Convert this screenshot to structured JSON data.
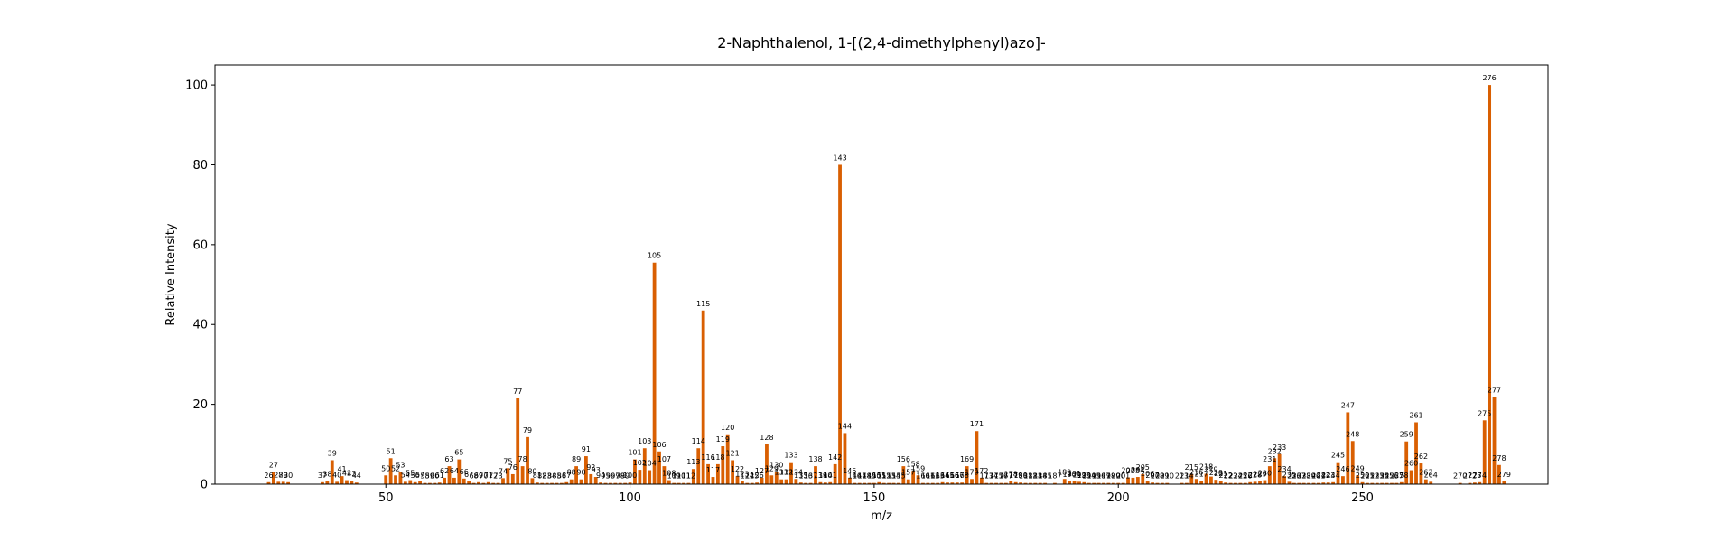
{
  "chart_data": {
    "type": "bar",
    "title": "2-Naphthalenol, 1-[(2,4-dimethylphenyl)azo]-",
    "xlabel": "m/z",
    "ylabel": "Relative Intensity",
    "xlim": [
      15,
      288
    ],
    "ylim": [
      0,
      105
    ],
    "xticks": [
      50,
      100,
      150,
      200,
      250
    ],
    "yticks": [
      0,
      20,
      40,
      60,
      80,
      100
    ],
    "grid": false,
    "bar_color": "#d95f02",
    "peaks": [
      {
        "x": 26,
        "y": 0.5
      },
      {
        "x": 27,
        "y": 3.0
      },
      {
        "x": 28,
        "y": 0.6
      },
      {
        "x": 29,
        "y": 0.6
      },
      {
        "x": 30,
        "y": 0.5
      },
      {
        "x": 37,
        "y": 0.5
      },
      {
        "x": 38,
        "y": 0.8
      },
      {
        "x": 39,
        "y": 6.0
      },
      {
        "x": 40,
        "y": 0.6
      },
      {
        "x": 41,
        "y": 2.0
      },
      {
        "x": 42,
        "y": 1.0
      },
      {
        "x": 43,
        "y": 0.9
      },
      {
        "x": 44,
        "y": 0.4
      },
      {
        "x": 50,
        "y": 2.2
      },
      {
        "x": 51,
        "y": 6.5
      },
      {
        "x": 52,
        "y": 2.2
      },
      {
        "x": 53,
        "y": 3.0
      },
      {
        "x": 54,
        "y": 0.6
      },
      {
        "x": 55,
        "y": 1.0
      },
      {
        "x": 56,
        "y": 0.5
      },
      {
        "x": 57,
        "y": 0.7
      },
      {
        "x": 58,
        "y": 0.3
      },
      {
        "x": 59,
        "y": 0.3
      },
      {
        "x": 60,
        "y": 0.3
      },
      {
        "x": 61,
        "y": 0.4
      },
      {
        "x": 62,
        "y": 1.6
      },
      {
        "x": 63,
        "y": 4.5
      },
      {
        "x": 64,
        "y": 1.6
      },
      {
        "x": 65,
        "y": 6.2
      },
      {
        "x": 66,
        "y": 1.4
      },
      {
        "x": 67,
        "y": 0.7
      },
      {
        "x": 68,
        "y": 0.3
      },
      {
        "x": 69,
        "y": 0.5
      },
      {
        "x": 70,
        "y": 0.3
      },
      {
        "x": 71,
        "y": 0.5
      },
      {
        "x": 72,
        "y": 0.3
      },
      {
        "x": 73,
        "y": 0.3
      },
      {
        "x": 74,
        "y": 1.5
      },
      {
        "x": 75,
        "y": 4.0
      },
      {
        "x": 76,
        "y": 2.5
      },
      {
        "x": 77,
        "y": 21.5
      },
      {
        "x": 78,
        "y": 4.5
      },
      {
        "x": 79,
        "y": 11.8
      },
      {
        "x": 80,
        "y": 1.5
      },
      {
        "x": 81,
        "y": 0.4
      },
      {
        "x": 82,
        "y": 0.3
      },
      {
        "x": 83,
        "y": 0.3
      },
      {
        "x": 84,
        "y": 0.3
      },
      {
        "x": 85,
        "y": 0.3
      },
      {
        "x": 86,
        "y": 0.3
      },
      {
        "x": 87,
        "y": 0.5
      },
      {
        "x": 88,
        "y": 1.2
      },
      {
        "x": 89,
        "y": 4.5
      },
      {
        "x": 90,
        "y": 1.2
      },
      {
        "x": 91,
        "y": 7.0
      },
      {
        "x": 92,
        "y": 2.5
      },
      {
        "x": 93,
        "y": 1.8
      },
      {
        "x": 94,
        "y": 0.4
      },
      {
        "x": 95,
        "y": 0.3
      },
      {
        "x": 96,
        "y": 0.3
      },
      {
        "x": 97,
        "y": 0.3
      },
      {
        "x": 98,
        "y": 0.3
      },
      {
        "x": 99,
        "y": 0.3
      },
      {
        "x": 100,
        "y": 0.4
      },
      {
        "x": 101,
        "y": 6.2
      },
      {
        "x": 102,
        "y": 3.6
      },
      {
        "x": 103,
        "y": 9.0
      },
      {
        "x": 104,
        "y": 3.5
      },
      {
        "x": 105,
        "y": 55.5
      },
      {
        "x": 106,
        "y": 8.2
      },
      {
        "x": 107,
        "y": 4.5
      },
      {
        "x": 108,
        "y": 1.0
      },
      {
        "x": 109,
        "y": 0.3
      },
      {
        "x": 110,
        "y": 0.3
      },
      {
        "x": 111,
        "y": 0.3
      },
      {
        "x": 112,
        "y": 0.3
      },
      {
        "x": 113,
        "y": 3.8
      },
      {
        "x": 114,
        "y": 9.0
      },
      {
        "x": 115,
        "y": 43.5
      },
      {
        "x": 116,
        "y": 5.0
      },
      {
        "x": 117,
        "y": 1.8
      },
      {
        "x": 118,
        "y": 5.0
      },
      {
        "x": 119,
        "y": 9.5
      },
      {
        "x": 120,
        "y": 12.5
      },
      {
        "x": 121,
        "y": 6.0
      },
      {
        "x": 122,
        "y": 2.0
      },
      {
        "x": 123,
        "y": 0.8
      },
      {
        "x": 124,
        "y": 0.3
      },
      {
        "x": 125,
        "y": 0.3
      },
      {
        "x": 126,
        "y": 0.4
      },
      {
        "x": 127,
        "y": 1.6
      },
      {
        "x": 128,
        "y": 10.0
      },
      {
        "x": 129,
        "y": 2.2
      },
      {
        "x": 130,
        "y": 3.0
      },
      {
        "x": 131,
        "y": 1.2
      },
      {
        "x": 132,
        "y": 1.2
      },
      {
        "x": 133,
        "y": 5.5
      },
      {
        "x": 134,
        "y": 1.3
      },
      {
        "x": 135,
        "y": 0.4
      },
      {
        "x": 136,
        "y": 0.3
      },
      {
        "x": 137,
        "y": 0.3
      },
      {
        "x": 138,
        "y": 4.5
      },
      {
        "x": 139,
        "y": 0.5
      },
      {
        "x": 140,
        "y": 0.4
      },
      {
        "x": 141,
        "y": 0.5
      },
      {
        "x": 142,
        "y": 5.0
      },
      {
        "x": 143,
        "y": 80.0
      },
      {
        "x": 144,
        "y": 12.8
      },
      {
        "x": 145,
        "y": 1.6
      },
      {
        "x": 146,
        "y": 0.3
      },
      {
        "x": 147,
        "y": 0.3
      },
      {
        "x": 148,
        "y": 0.3
      },
      {
        "x": 149,
        "y": 0.3
      },
      {
        "x": 150,
        "y": 0.3
      },
      {
        "x": 151,
        "y": 0.5
      },
      {
        "x": 152,
        "y": 0.3
      },
      {
        "x": 153,
        "y": 0.3
      },
      {
        "x": 154,
        "y": 0.3
      },
      {
        "x": 155,
        "y": 0.3
      },
      {
        "x": 156,
        "y": 4.5
      },
      {
        "x": 157,
        "y": 1.2
      },
      {
        "x": 158,
        "y": 3.3
      },
      {
        "x": 159,
        "y": 2.2
      },
      {
        "x": 160,
        "y": 0.3
      },
      {
        "x": 161,
        "y": 0.3
      },
      {
        "x": 162,
        "y": 0.3
      },
      {
        "x": 163,
        "y": 0.3
      },
      {
        "x": 164,
        "y": 0.5
      },
      {
        "x": 165,
        "y": 0.4
      },
      {
        "x": 166,
        "y": 0.4
      },
      {
        "x": 167,
        "y": 0.4
      },
      {
        "x": 168,
        "y": 0.4
      },
      {
        "x": 169,
        "y": 4.5
      },
      {
        "x": 170,
        "y": 1.3
      },
      {
        "x": 171,
        "y": 13.3
      },
      {
        "x": 172,
        "y": 1.6
      },
      {
        "x": 173,
        "y": 0.3
      },
      {
        "x": 174,
        "y": 0.3
      },
      {
        "x": 175,
        "y": 0.3
      },
      {
        "x": 176,
        "y": 0.3
      },
      {
        "x": 177,
        "y": 0.3
      },
      {
        "x": 178,
        "y": 0.8
      },
      {
        "x": 179,
        "y": 0.5
      },
      {
        "x": 180,
        "y": 0.4
      },
      {
        "x": 181,
        "y": 0.3
      },
      {
        "x": 182,
        "y": 0.3
      },
      {
        "x": 183,
        "y": 0.3
      },
      {
        "x": 184,
        "y": 0.3
      },
      {
        "x": 185,
        "y": 0.3
      },
      {
        "x": 187,
        "y": 0.3
      },
      {
        "x": 189,
        "y": 1.3
      },
      {
        "x": 190,
        "y": 0.7
      },
      {
        "x": 191,
        "y": 0.9
      },
      {
        "x": 192,
        "y": 0.6
      },
      {
        "x": 193,
        "y": 0.5
      },
      {
        "x": 194,
        "y": 0.3
      },
      {
        "x": 195,
        "y": 0.3
      },
      {
        "x": 196,
        "y": 0.3
      },
      {
        "x": 197,
        "y": 0.3
      },
      {
        "x": 198,
        "y": 0.3
      },
      {
        "x": 199,
        "y": 0.3
      },
      {
        "x": 200,
        "y": 0.3
      },
      {
        "x": 201,
        "y": 0.3
      },
      {
        "x": 202,
        "y": 1.7
      },
      {
        "x": 203,
        "y": 1.6
      },
      {
        "x": 204,
        "y": 1.8
      },
      {
        "x": 205,
        "y": 2.5
      },
      {
        "x": 206,
        "y": 0.9
      },
      {
        "x": 207,
        "y": 0.4
      },
      {
        "x": 208,
        "y": 0.3
      },
      {
        "x": 209,
        "y": 0.3
      },
      {
        "x": 210,
        "y": 0.3
      },
      {
        "x": 213,
        "y": 0.3
      },
      {
        "x": 214,
        "y": 0.3
      },
      {
        "x": 215,
        "y": 2.5
      },
      {
        "x": 216,
        "y": 1.3
      },
      {
        "x": 217,
        "y": 0.8
      },
      {
        "x": 218,
        "y": 2.6
      },
      {
        "x": 219,
        "y": 1.9
      },
      {
        "x": 220,
        "y": 1.1
      },
      {
        "x": 221,
        "y": 0.9
      },
      {
        "x": 222,
        "y": 0.4
      },
      {
        "x": 223,
        "y": 0.3
      },
      {
        "x": 224,
        "y": 0.3
      },
      {
        "x": 225,
        "y": 0.3
      },
      {
        "x": 226,
        "y": 0.3
      },
      {
        "x": 227,
        "y": 0.5
      },
      {
        "x": 228,
        "y": 0.6
      },
      {
        "x": 229,
        "y": 0.8
      },
      {
        "x": 230,
        "y": 1.0
      },
      {
        "x": 231,
        "y": 4.5
      },
      {
        "x": 232,
        "y": 6.5
      },
      {
        "x": 233,
        "y": 7.5
      },
      {
        "x": 234,
        "y": 2.0
      },
      {
        "x": 235,
        "y": 0.6
      },
      {
        "x": 236,
        "y": 0.3
      },
      {
        "x": 237,
        "y": 0.3
      },
      {
        "x": 238,
        "y": 0.3
      },
      {
        "x": 239,
        "y": 0.3
      },
      {
        "x": 240,
        "y": 0.3
      },
      {
        "x": 241,
        "y": 0.3
      },
      {
        "x": 242,
        "y": 0.4
      },
      {
        "x": 243,
        "y": 0.4
      },
      {
        "x": 244,
        "y": 0.5
      },
      {
        "x": 245,
        "y": 5.5
      },
      {
        "x": 246,
        "y": 2.0
      },
      {
        "x": 247,
        "y": 18.0
      },
      {
        "x": 248,
        "y": 10.8
      },
      {
        "x": 249,
        "y": 2.2
      },
      {
        "x": 250,
        "y": 0.5
      },
      {
        "x": 251,
        "y": 0.3
      },
      {
        "x": 252,
        "y": 0.3
      },
      {
        "x": 253,
        "y": 0.3
      },
      {
        "x": 254,
        "y": 0.3
      },
      {
        "x": 255,
        "y": 0.3
      },
      {
        "x": 256,
        "y": 0.3
      },
      {
        "x": 257,
        "y": 0.3
      },
      {
        "x": 258,
        "y": 0.5
      },
      {
        "x": 259,
        "y": 10.7
      },
      {
        "x": 260,
        "y": 3.5
      },
      {
        "x": 261,
        "y": 15.5
      },
      {
        "x": 262,
        "y": 5.2
      },
      {
        "x": 263,
        "y": 1.2
      },
      {
        "x": 264,
        "y": 0.6
      },
      {
        "x": 270,
        "y": 0.3
      },
      {
        "x": 272,
        "y": 0.3
      },
      {
        "x": 273,
        "y": 0.4
      },
      {
        "x": 274,
        "y": 0.5
      },
      {
        "x": 275,
        "y": 16.0
      },
      {
        "x": 276,
        "y": 100.0
      },
      {
        "x": 277,
        "y": 21.8
      },
      {
        "x": 278,
        "y": 4.8
      },
      {
        "x": 279,
        "y": 0.7
      }
    ]
  }
}
